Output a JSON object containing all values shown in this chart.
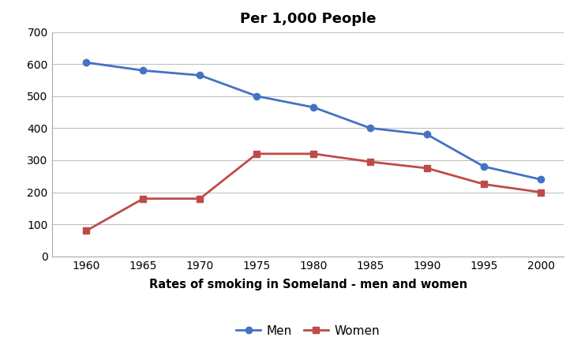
{
  "title": "Per 1,000 People",
  "xlabel": "Rates of smoking in Someland - men and women",
  "years": [
    1960,
    1965,
    1970,
    1975,
    1980,
    1985,
    1990,
    1995,
    2000
  ],
  "men": [
    605,
    580,
    565,
    500,
    465,
    400,
    380,
    280,
    240
  ],
  "women": [
    80,
    180,
    180,
    320,
    320,
    295,
    275,
    225,
    200
  ],
  "men_color": "#4472C4",
  "women_color": "#BE4B48",
  "background_color": "#FFFFFF",
  "plot_bg_color": "#FFFFFF",
  "grid_color": "#C0C0C0",
  "ylim": [
    0,
    700
  ],
  "yticks": [
    0,
    100,
    200,
    300,
    400,
    500,
    600,
    700
  ],
  "title_fontsize": 13,
  "xlabel_fontsize": 10.5,
  "tick_fontsize": 10,
  "legend_labels": [
    "Men",
    "Women"
  ],
  "marker_size": 6,
  "line_width": 2.0,
  "xlim_left": 1957,
  "xlim_right": 2002
}
